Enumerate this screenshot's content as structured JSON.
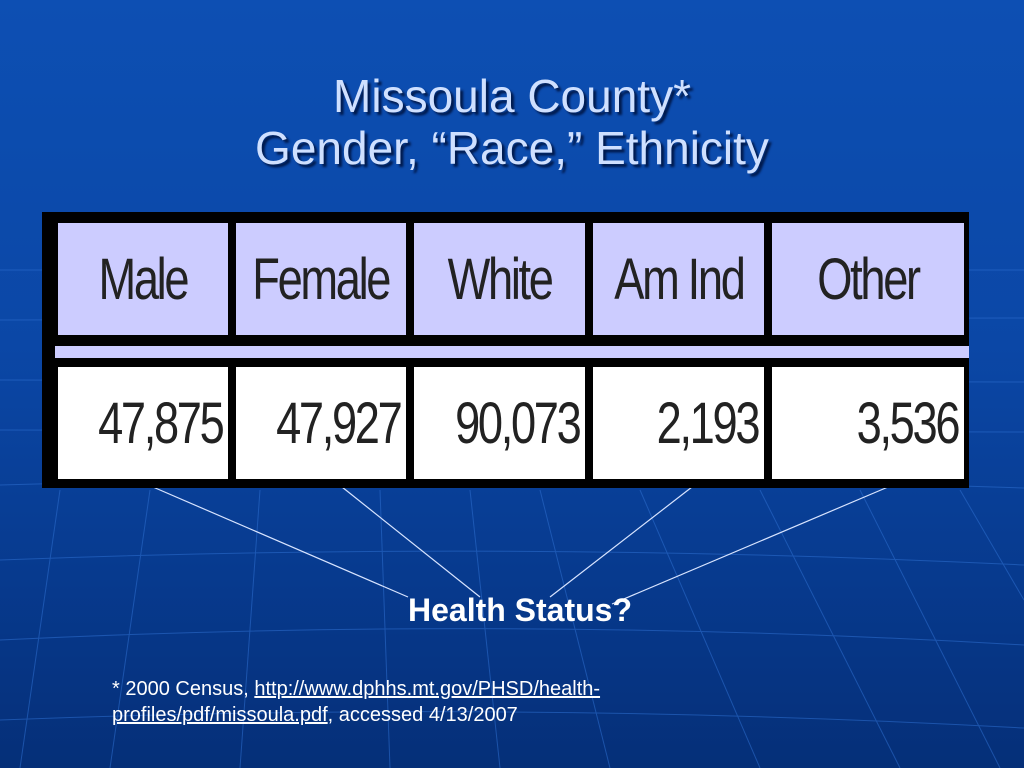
{
  "slide": {
    "title_line1": "Missoula County*",
    "title_line2": "Gender, “Race,” Ethnicity",
    "question": "Health Status?",
    "footnote": {
      "prefix": "* 2000 Census, ",
      "link_text_line1": "http://www.dphhs.mt.gov/PHSD/health-",
      "link_text_line2": "profiles/pdf/missoula.pdf",
      "suffix": ", accessed 4/13/2007"
    }
  },
  "table": {
    "headers": [
      "Male",
      "Female",
      "White",
      "Am Ind",
      "Other"
    ],
    "values": [
      "47,875",
      "47,927",
      "90,073",
      "2,193",
      "3,536"
    ]
  },
  "colors": {
    "background": "#0b47a6",
    "header_fill": "#ccccff",
    "title_text": "#cfe0ff"
  }
}
